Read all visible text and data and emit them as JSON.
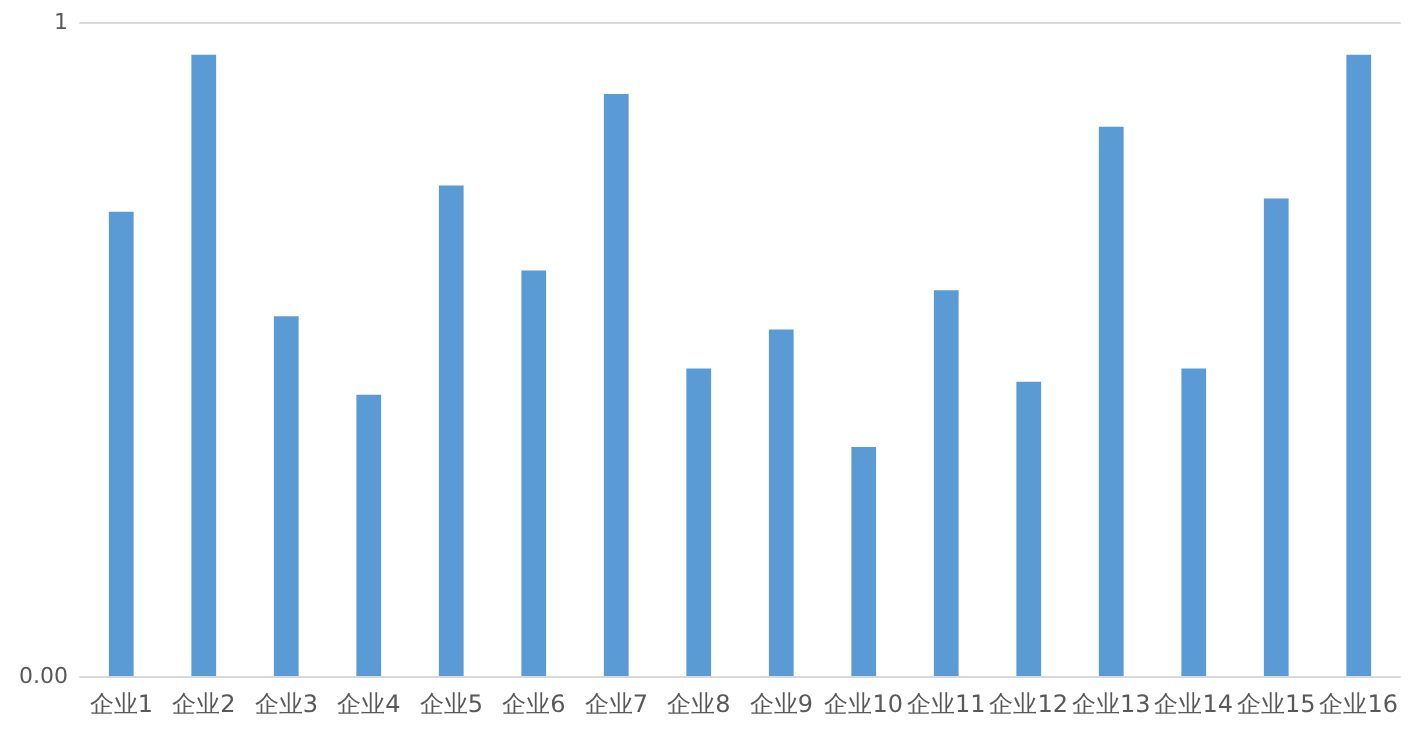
{
  "chart_data": {
    "type": "bar",
    "categories": [
      "企业1",
      "企业2",
      "企业3",
      "企业4",
      "企业5",
      "企业6",
      "企业7",
      "企业8",
      "企业9",
      "企业10",
      "企业11",
      "企业12",
      "企业13",
      "企业14",
      "企业15",
      "企业16"
    ],
    "values": [
      0.71,
      0.95,
      0.55,
      0.43,
      0.75,
      0.62,
      0.89,
      0.47,
      0.53,
      0.35,
      0.59,
      0.45,
      0.84,
      0.47,
      0.73,
      0.95
    ],
    "color": "#5b9bd5",
    "ylim": [
      0,
      1
    ],
    "yticks": [
      {
        "value": 0,
        "label": "0.00"
      },
      1
    ]
  }
}
